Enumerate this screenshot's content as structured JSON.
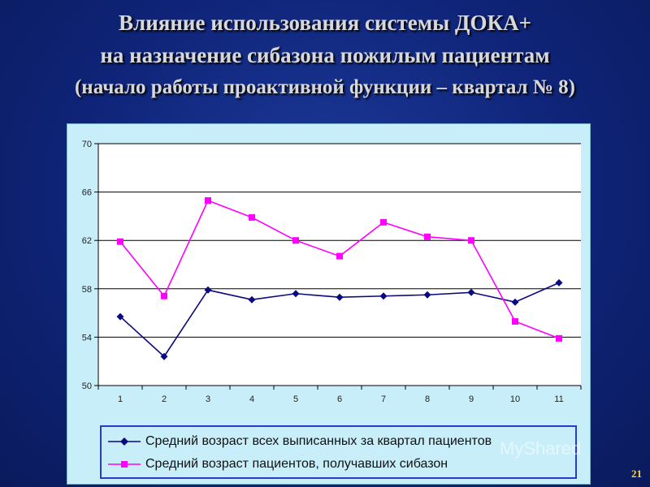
{
  "title": {
    "line1": "Влияние использования системы ДОКА+",
    "line2": "на назначение сибазона пожилым пациентам",
    "line3": "(начало работы проактивной функции – квартал № 8)"
  },
  "page_number": "21",
  "watermark": "MyShared",
  "colors": {
    "series1": "#0a0a80",
    "series2": "#ff00ff",
    "plot_bg": "#ffffff",
    "panel_bg": "#c7eef9"
  },
  "chart_data": {
    "type": "line",
    "title": "",
    "xlabel": "",
    "ylabel": "",
    "x": [
      1,
      2,
      3,
      4,
      5,
      6,
      7,
      8,
      9,
      10,
      11
    ],
    "ylim": [
      50,
      70
    ],
    "yticks": [
      50,
      54,
      58,
      62,
      66,
      70
    ],
    "grid": true,
    "legend_position": "bottom",
    "series": [
      {
        "name": "Средний возраст всех выписанных за квартал пациентов",
        "marker": "diamond",
        "values": [
          55.7,
          52.4,
          57.9,
          57.1,
          57.6,
          57.3,
          57.4,
          57.5,
          57.7,
          56.9,
          58.5
        ]
      },
      {
        "name": "Средний возраст пациентов, получавших сибазон",
        "marker": "square",
        "values": [
          61.9,
          57.4,
          65.3,
          63.9,
          62.0,
          60.7,
          63.5,
          62.3,
          62.0,
          55.3,
          53.9
        ]
      }
    ]
  }
}
